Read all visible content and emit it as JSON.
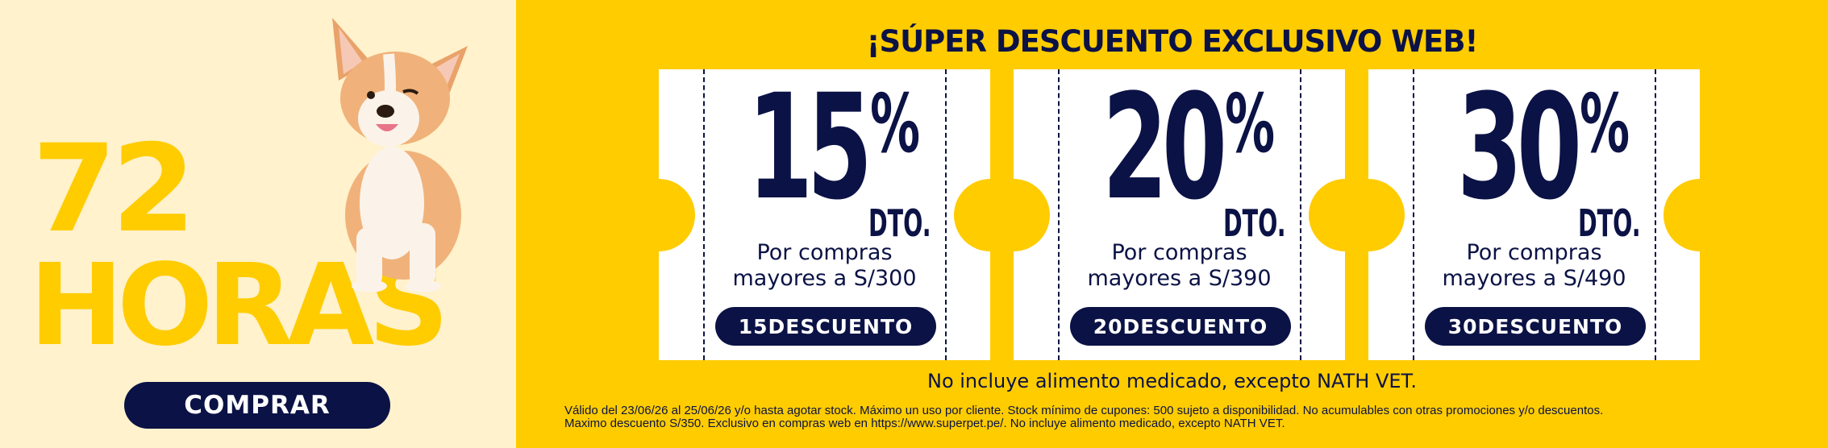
{
  "left": {
    "big_number": "72",
    "big_word": "HORAS",
    "cta_label": "COMPRAR"
  },
  "headline": "¡SÚPER DESCUENTO EXCLUSIVO WEB!",
  "coupons": [
    {
      "percent": "15",
      "symbol": "%",
      "dto": "DTO.",
      "line1": "Por compras",
      "line2": "mayores a S/300",
      "code": "15DESCUENTO"
    },
    {
      "percent": "20",
      "symbol": "%",
      "dto": "DTO.",
      "line1": "Por compras",
      "line2": "mayores a S/390",
      "code": "20DESCUENTO"
    },
    {
      "percent": "30",
      "symbol": "%",
      "dto": "DTO.",
      "line1": "Por compras",
      "line2": "mayores a S/490",
      "code": "30DESCUENTO"
    }
  ],
  "note": "No incluye alimento medicado, excepto NATH VET.",
  "legal": {
    "line1": "Válido del 23/06/26 al 25/06/26 y/o hasta agotar stock. Máximo un uso por cliente. Stock mínimo de cupones: 500 sujeto a disponibilidad. No acumulables con otras promociones y/o descuentos.",
    "line2": "Maximo descuento S/350. Exclusivo en compras web en https://www.superpet.pe/. No incluye alimento medicado, excepto NATH VET."
  },
  "colors": {
    "yellow": "#ffcc00",
    "cream": "#fff2cc",
    "navy": "#0b1245"
  }
}
